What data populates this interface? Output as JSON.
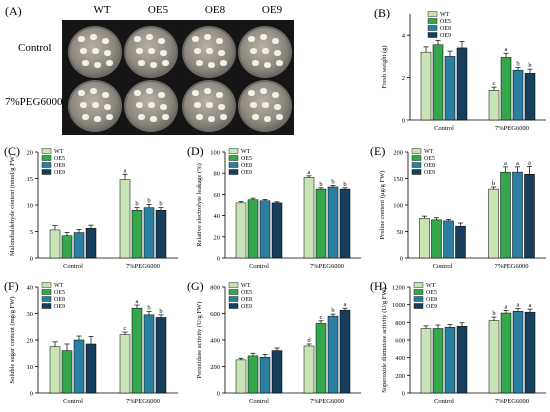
{
  "photo": {
    "letter": "(A)",
    "columns": [
      "WT",
      "OE5",
      "OE8",
      "OE9"
    ],
    "rows": [
      "Control",
      "7%PEG6000"
    ]
  },
  "colors": {
    "WT": "#c8e4b4",
    "OE5": "#35a64c",
    "OE8": "#2a7fa0",
    "OE9": "#153f5b"
  },
  "chart_data": [
    {
      "letter": "(B)",
      "type": "bar",
      "ylabel": "Fresh weight (g)",
      "categories": [
        "Control",
        "7%PEG6000"
      ],
      "ylim": [
        0,
        5
      ],
      "yticks": [
        0,
        2,
        4
      ],
      "series": [
        {
          "name": "WT",
          "values": [
            3.2,
            1.4
          ],
          "errors": [
            0.25,
            0.15
          ],
          "sig": [
            "",
            "c"
          ]
        },
        {
          "name": "OE5",
          "values": [
            3.55,
            2.95
          ],
          "errors": [
            0.2,
            0.2
          ],
          "sig": [
            "",
            "a"
          ]
        },
        {
          "name": "OE8",
          "values": [
            3.0,
            2.35
          ],
          "errors": [
            0.25,
            0.12
          ],
          "sig": [
            "",
            "b"
          ]
        },
        {
          "name": "OE9",
          "values": [
            3.4,
            2.2
          ],
          "errors": [
            0.3,
            0.2
          ],
          "sig": [
            "",
            "b"
          ]
        }
      ]
    },
    {
      "letter": "(C)",
      "type": "bar",
      "ylabel": "Malondialdehyde content (nmol/g FW)",
      "categories": [
        "Control",
        "7%PEG6000"
      ],
      "ylim": [
        0,
        20
      ],
      "yticks": [
        0,
        5,
        10,
        15,
        20
      ],
      "series": [
        {
          "name": "WT",
          "values": [
            5.3,
            14.8
          ],
          "errors": [
            0.8,
            1.0
          ],
          "sig": [
            "",
            "a"
          ]
        },
        {
          "name": "OE5",
          "values": [
            4.2,
            9.0
          ],
          "errors": [
            0.6,
            0.5
          ],
          "sig": [
            "",
            "b"
          ]
        },
        {
          "name": "OE8",
          "values": [
            4.8,
            9.5
          ],
          "errors": [
            0.6,
            0.6
          ],
          "sig": [
            "",
            "b"
          ]
        },
        {
          "name": "OE9",
          "values": [
            5.6,
            9.0
          ],
          "errors": [
            0.6,
            0.5
          ],
          "sig": [
            "",
            "b"
          ]
        }
      ]
    },
    {
      "letter": "(D)",
      "type": "bar",
      "ylabel": "Relative electrolyte leakage (%)",
      "categories": [
        "Control",
        "7%PEG6000"
      ],
      "ylim": [
        0,
        100
      ],
      "yticks": [
        0,
        20,
        40,
        60,
        80,
        100
      ],
      "series": [
        {
          "name": "WT",
          "values": [
            52,
            76
          ],
          "errors": [
            1.2,
            1.5
          ],
          "sig": [
            "",
            "a"
          ]
        },
        {
          "name": "OE5",
          "values": [
            55,
            65
          ],
          "errors": [
            1.5,
            1.2
          ],
          "sig": [
            "",
            "b"
          ]
        },
        {
          "name": "OE8",
          "values": [
            54,
            67
          ],
          "errors": [
            1.2,
            1.3
          ],
          "sig": [
            "",
            "b"
          ]
        },
        {
          "name": "OE9",
          "values": [
            52,
            65
          ],
          "errors": [
            1.0,
            1.2
          ],
          "sig": [
            "",
            "b"
          ]
        }
      ]
    },
    {
      "letter": "(E)",
      "type": "bar",
      "ylabel": "Proline content (µg/g FW)",
      "categories": [
        "Control",
        "7%PEG6000"
      ],
      "ylim": [
        0,
        200
      ],
      "yticks": [
        0,
        50,
        100,
        150,
        200
      ],
      "series": [
        {
          "name": "WT",
          "values": [
            75,
            130
          ],
          "errors": [
            4,
            4
          ],
          "sig": [
            "",
            "b"
          ]
        },
        {
          "name": "OE5",
          "values": [
            72,
            162
          ],
          "errors": [
            4,
            10
          ],
          "sig": [
            "",
            "a"
          ]
        },
        {
          "name": "OE8",
          "values": [
            70,
            162
          ],
          "errors": [
            3,
            10
          ],
          "sig": [
            "",
            "a"
          ]
        },
        {
          "name": "OE9",
          "values": [
            60,
            158
          ],
          "errors": [
            6,
            15
          ],
          "sig": [
            "",
            "a"
          ]
        }
      ]
    },
    {
      "letter": "(F)",
      "type": "bar",
      "ylabel": "Soluble sugar content (mg/g FW)",
      "categories": [
        "Control",
        "7%PEG6000"
      ],
      "ylim": [
        0,
        40
      ],
      "yticks": [
        0,
        10,
        20,
        30,
        40
      ],
      "series": [
        {
          "name": "WT",
          "values": [
            17.5,
            22
          ],
          "errors": [
            1.8,
            1.0
          ],
          "sig": [
            "",
            "c"
          ]
        },
        {
          "name": "OE5",
          "values": [
            16,
            32
          ],
          "errors": [
            2.5,
            1.2
          ],
          "sig": [
            "",
            "a"
          ]
        },
        {
          "name": "OE8",
          "values": [
            20,
            29.5
          ],
          "errors": [
            1.5,
            1.2
          ],
          "sig": [
            "",
            "b"
          ]
        },
        {
          "name": "OE9",
          "values": [
            18.5,
            28.5
          ],
          "errors": [
            2.8,
            1.0
          ],
          "sig": [
            "",
            "b"
          ]
        }
      ]
    },
    {
      "letter": "(G)",
      "type": "bar",
      "ylabel": "Peroxidase activity (U/g FW)",
      "categories": [
        "Control",
        "7%PEG6000"
      ],
      "ylim": [
        0,
        800
      ],
      "yticks": [
        0,
        200,
        400,
        600,
        800
      ],
      "series": [
        {
          "name": "WT",
          "values": [
            250,
            355
          ],
          "errors": [
            12,
            15
          ],
          "sig": [
            "",
            "d"
          ]
        },
        {
          "name": "OE5",
          "values": [
            280,
            525
          ],
          "errors": [
            20,
            20
          ],
          "sig": [
            "",
            "c"
          ]
        },
        {
          "name": "OE8",
          "values": [
            270,
            580
          ],
          "errors": [
            20,
            15
          ],
          "sig": [
            "",
            "b"
          ]
        },
        {
          "name": "OE9",
          "values": [
            320,
            625
          ],
          "errors": [
            20,
            15
          ],
          "sig": [
            "",
            "a"
          ]
        }
      ]
    },
    {
      "letter": "(H)",
      "type": "bar",
      "ylabel": "Superoxide dismutase activity (U/g FW)",
      "categories": [
        "Control",
        "7%PEG6000"
      ],
      "ylim": [
        0,
        1200
      ],
      "yticks": [
        0,
        200,
        400,
        600,
        800,
        1000,
        1200
      ],
      "series": [
        {
          "name": "WT",
          "values": [
            730,
            820
          ],
          "errors": [
            30,
            40
          ],
          "sig": [
            "",
            "b"
          ]
        },
        {
          "name": "OE5",
          "values": [
            730,
            905
          ],
          "errors": [
            40,
            30
          ],
          "sig": [
            "",
            "a"
          ]
        },
        {
          "name": "OE8",
          "values": [
            745,
            925
          ],
          "errors": [
            30,
            30
          ],
          "sig": [
            "",
            "a"
          ]
        },
        {
          "name": "OE9",
          "values": [
            755,
            915
          ],
          "errors": [
            40,
            35
          ],
          "sig": [
            "",
            "a"
          ]
        }
      ]
    }
  ]
}
